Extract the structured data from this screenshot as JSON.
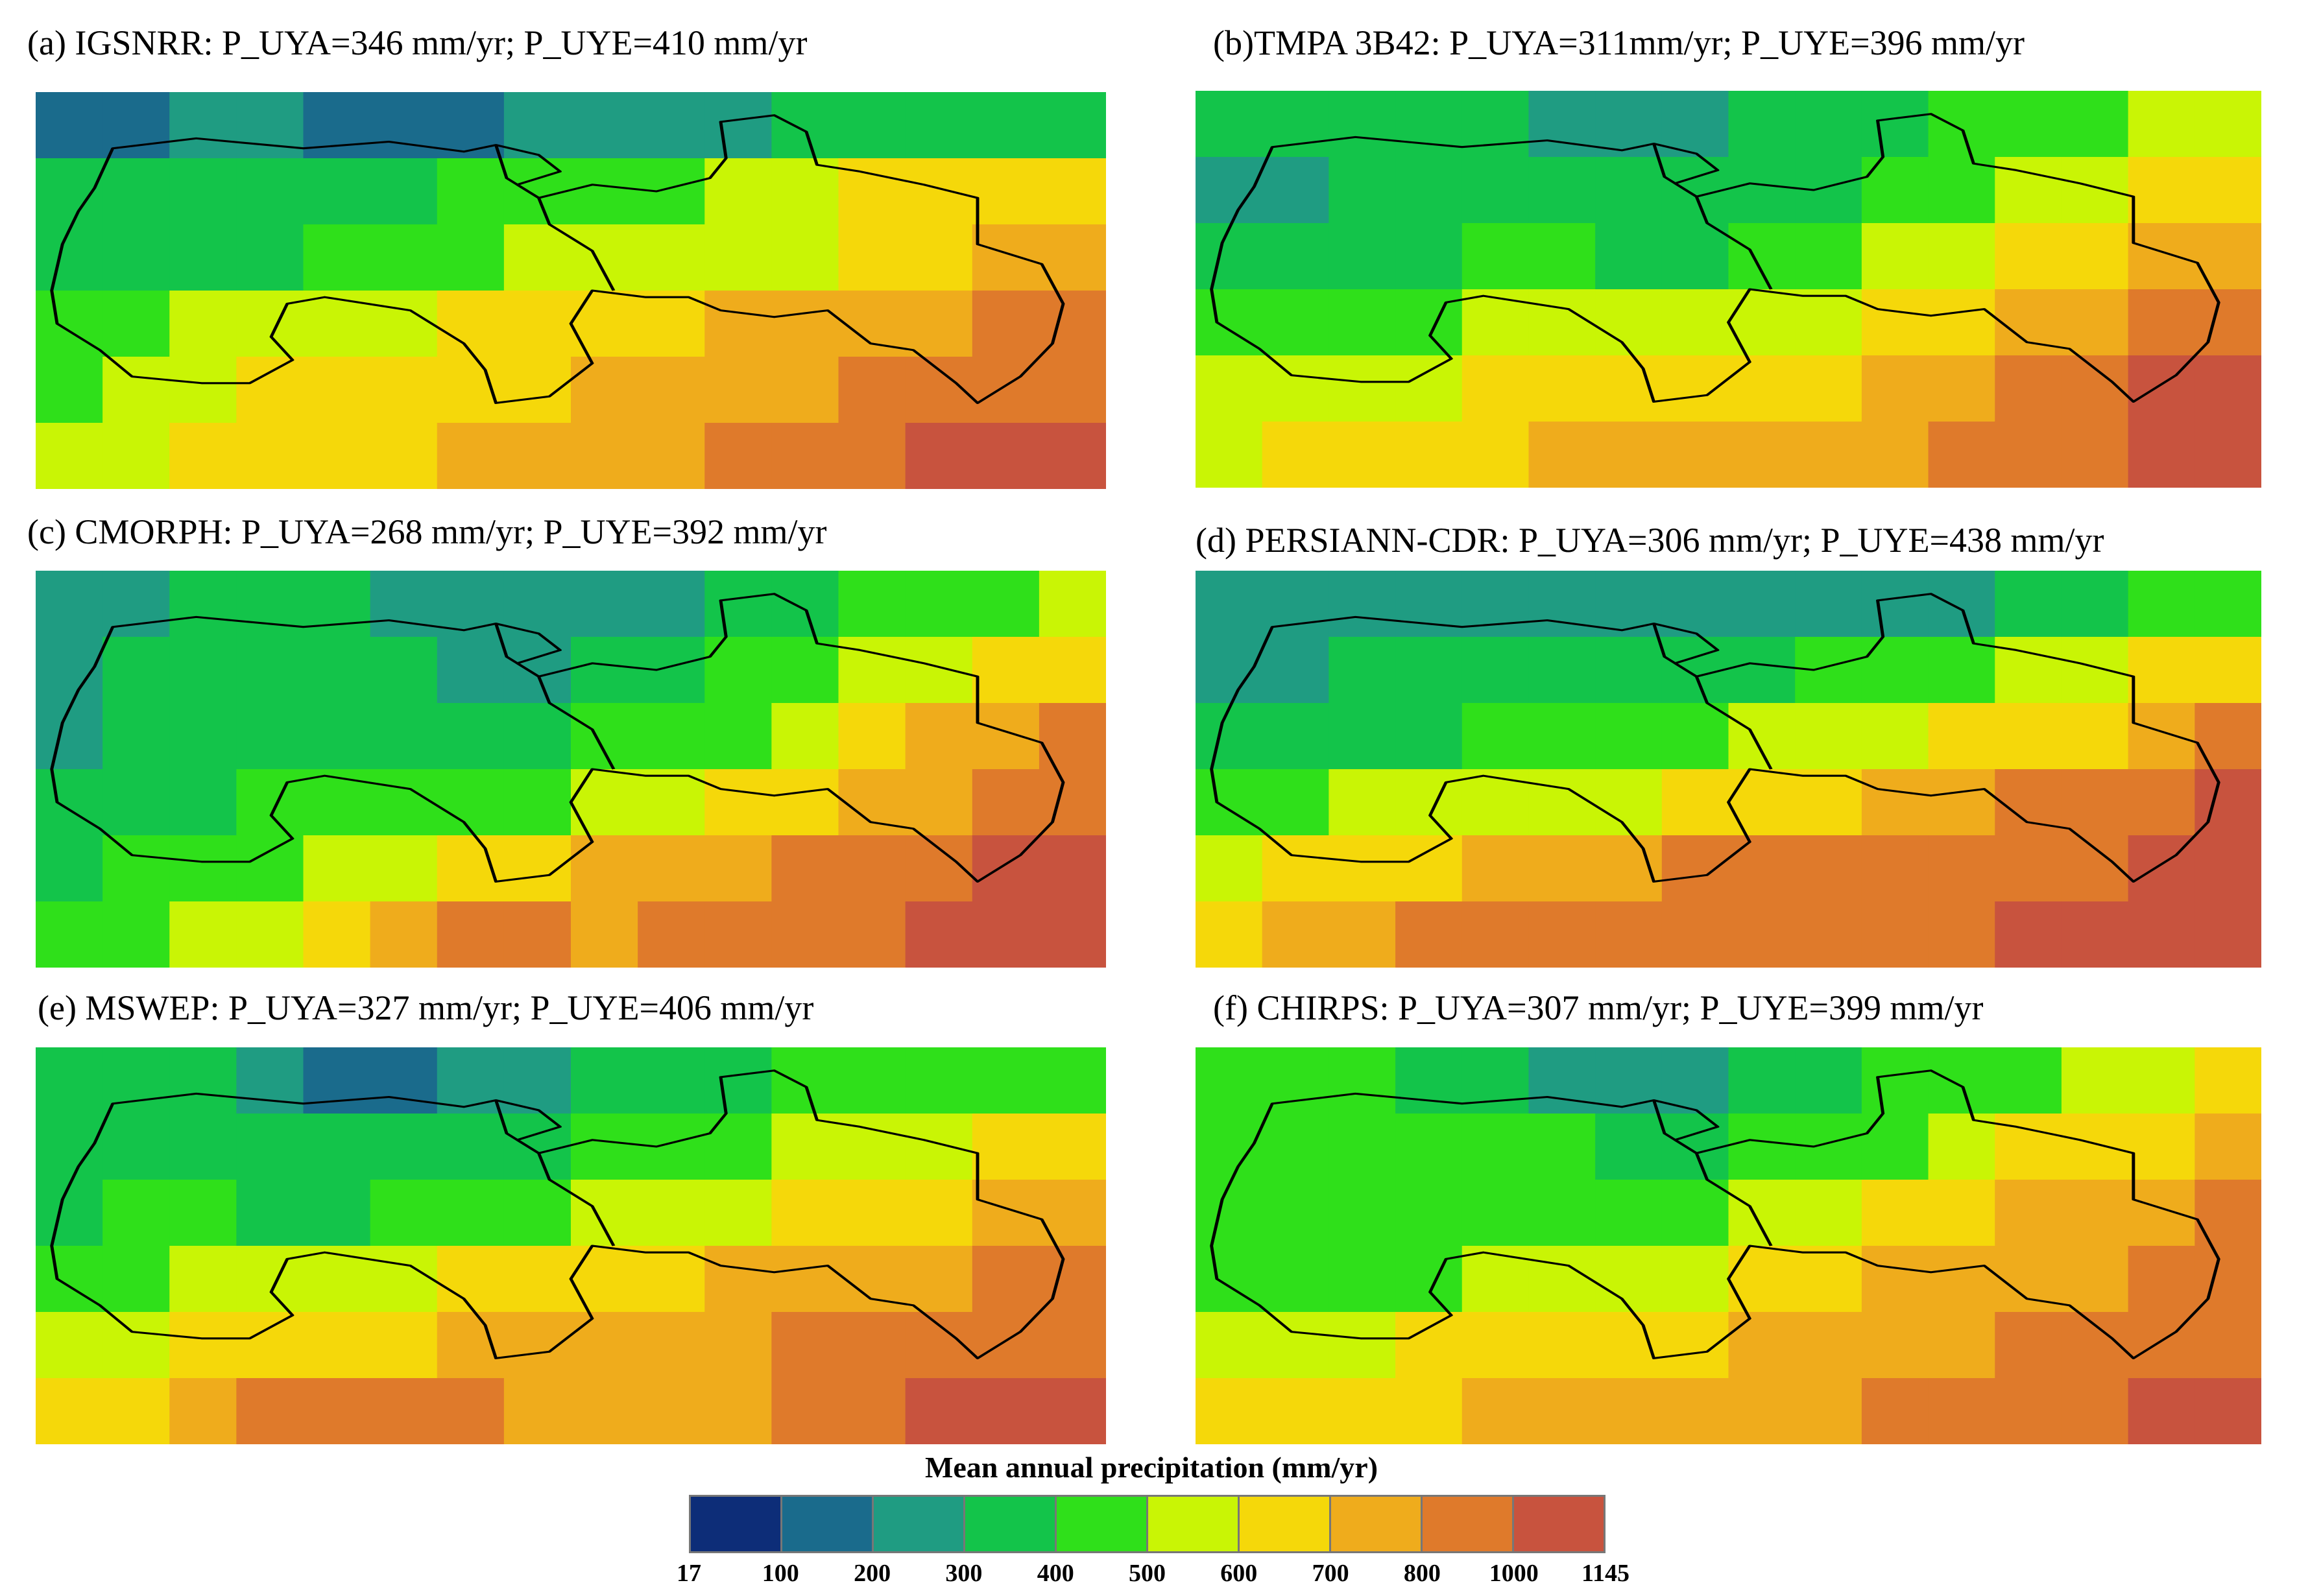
{
  "panels": [
    {
      "id": "a",
      "title": "(a) IGSNRR: P_UYA=346 mm/yr; P_UYE=410 mm/yr",
      "pattern": [
        "1122111222233333",
        "3333334444556666",
        "3333444555556677",
        "4455556666777788",
        "4556666677778888",
        "5566667777888999"
      ]
    },
    {
      "id": "b",
      "title": "(b)TMPA 3B42: P_UYA=311mm/yr; P_UYE=396 mm/yr",
      "pattern": [
        "3333322233344455",
        "2233333333445566",
        "3333443344556677",
        "4444555555667788",
        "5555666666778899",
        "5666677777788899"
      ]
    },
    {
      "id": "c",
      "title": "(c) CMORPH: P_UYA=268 mm/yr; P_UYE=392 mm/yr",
      "pattern": [
        "2233322222334445",
        "2333332233445566",
        "2333333344456778",
        "3334444455667788",
        "3444556677788899",
        "4455678878888999"
      ]
    },
    {
      "id": "d",
      "title": "(d) PERSIANN-CDR: P_UYA=306 mm/yr; P_UYE=438 mm/yr",
      "pattern": [
        "2222222222223344",
        "2233333334445566",
        "3333444455566678",
        "4455555666778889",
        "5666777888888899",
        "6778888888889999"
      ]
    },
    {
      "id": "e",
      "title": "(e) MSWEP: P_UYA=327 mm/yr; P_UYE=406 mm/yr",
      "pattern": [
        "3332112233344444",
        "3333333344455566",
        "3443344455566677",
        "4455556666777788",
        "5566667777788888",
        "6678888777788999"
      ]
    },
    {
      "id": "f",
      "title": "(f) CHIRPS: P_UYA=307 mm/yr; P_UYE=399 mm/yr",
      "pattern": [
        "4443322233444556",
        "4444443344456667",
        "4444444455667778",
        "4444555566777788",
        "5556666677778888",
        "6666777777888899"
      ]
    }
  ],
  "legend": {
    "title": "Mean annual precipitation (mm/yr)",
    "ticks": [
      "17",
      "100",
      "200",
      "300",
      "400",
      "500",
      "600",
      "700",
      "800",
      "1000",
      "1145"
    ],
    "colors": [
      "#0d2d78",
      "#1a6b8c",
      "#1f9c82",
      "#13c44a",
      "#2fe01a",
      "#c9f505",
      "#f5d80a",
      "#efac1c",
      "#df7a2b",
      "#c8533e"
    ]
  }
}
